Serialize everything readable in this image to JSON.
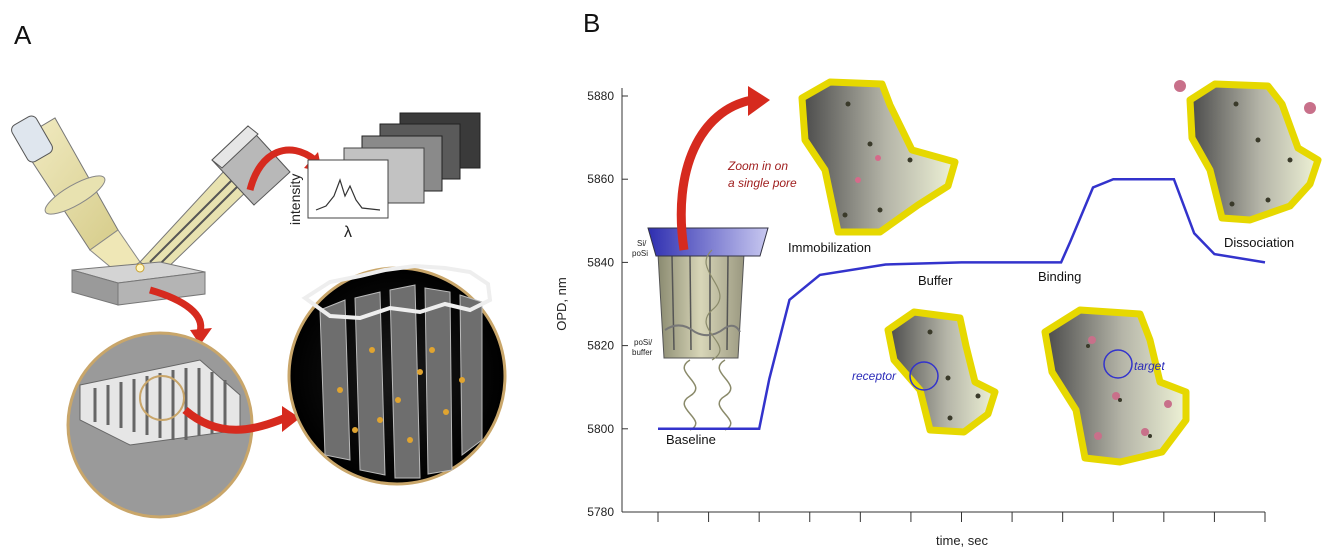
{
  "panels": {
    "a": "A",
    "b": "B"
  },
  "spectrum": {
    "ylabel": "intensity",
    "xlabel": "λ"
  },
  "chart": {
    "ylabel": "OPD, nm",
    "xlabel": "time, sec",
    "yticks": [
      "5880",
      "5860",
      "5840",
      "5820",
      "5800",
      "5780"
    ],
    "ytick_values": [
      5880,
      5860,
      5840,
      5820,
      5800,
      5780
    ],
    "ylim": [
      5780,
      5880
    ],
    "x_tick_count": 13,
    "line_color": "#3333cc"
  },
  "annotations": {
    "zoom_line1": "Zoom in on",
    "zoom_line2": "a single pore",
    "baseline": "Baseline",
    "immobilization": "Immobilization",
    "buffer": "Buffer",
    "binding": "Binding",
    "dissociation": "Dissociation",
    "receptor": "receptor",
    "target": "target",
    "si_posi_1": "Si/",
    "si_posi_2": "poSi",
    "posi_buffer_1": "poSi/",
    "posi_buffer_2": "buffer"
  },
  "chart_data": {
    "type": "line",
    "title": "",
    "xlabel": "time, sec",
    "ylabel": "OPD, nm",
    "ylim": [
      5780,
      5880
    ],
    "series": [
      {
        "x": [
          0,
          1,
          2,
          2.2,
          2.6,
          3.2,
          4.5,
          6,
          7.97,
          8.15,
          8.6,
          9,
          9.6,
          10.2,
          10.6,
          11,
          12
        ],
        "y": [
          5800,
          5800,
          5800,
          5812,
          5831,
          5837,
          5839.5,
          5840,
          5840,
          5845,
          5858,
          5860,
          5860,
          5860,
          5847,
          5842,
          5840
        ]
      }
    ]
  }
}
